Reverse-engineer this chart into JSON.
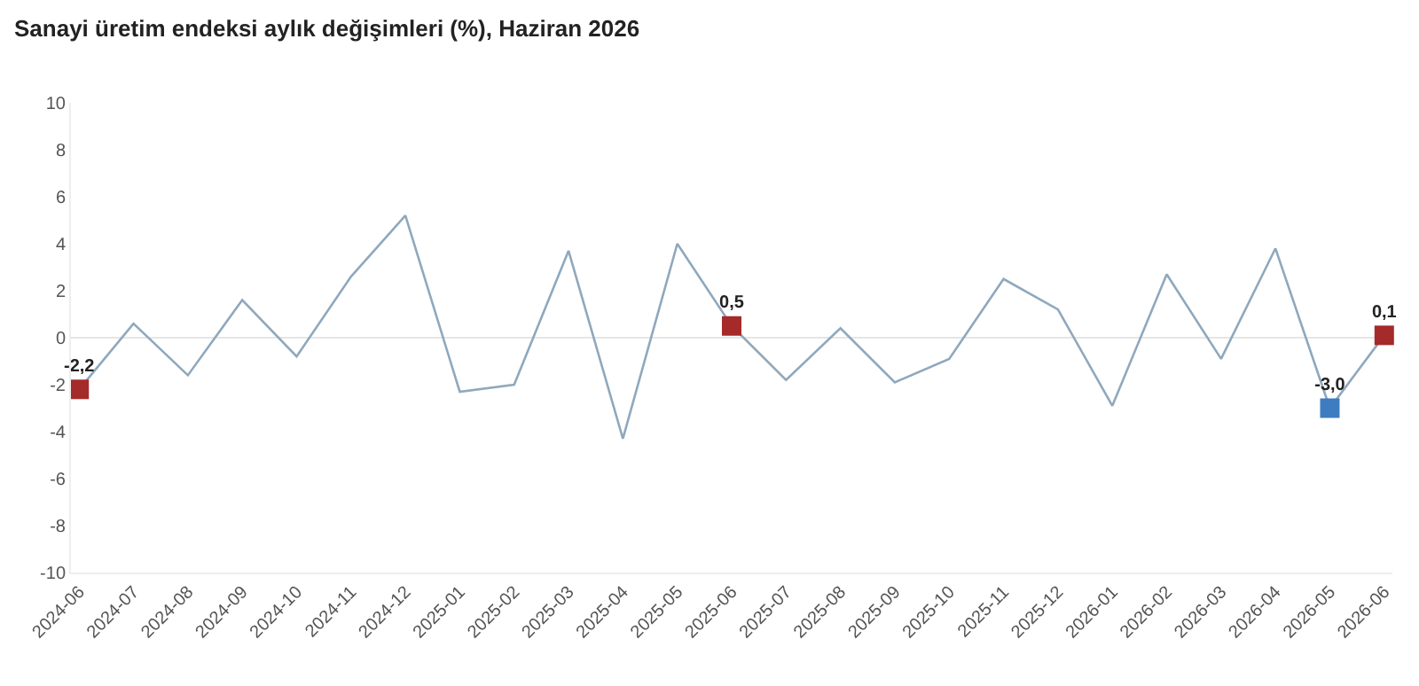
{
  "chart_data": {
    "type": "line",
    "title": "Sanayi üretim endeksi aylık değişimleri (%), Haziran 2026",
    "categories": [
      "2024-06",
      "2024-07",
      "2024-08",
      "2024-09",
      "2024-10",
      "2024-11",
      "2024-12",
      "2025-01",
      "2025-02",
      "2025-03",
      "2025-04",
      "2025-05",
      "2025-06",
      "2025-07",
      "2025-08",
      "2025-09",
      "2025-10",
      "2025-11",
      "2025-12",
      "2026-01",
      "2026-02",
      "2026-03",
      "2026-04",
      "2026-05",
      "2026-06"
    ],
    "series": [
      {
        "color": "#8fa8bd",
        "values": [
          -2.2,
          0.6,
          -1.6,
          1.6,
          -0.8,
          2.6,
          5.2,
          -2.3,
          -2.0,
          3.7,
          -4.3,
          4.0,
          0.5,
          -1.8,
          0.4,
          -1.9,
          -0.9,
          2.5,
          1.2,
          -2.9,
          2.7,
          -0.9,
          3.8,
          -3.0,
          0.1
        ],
        "colors": [
          "#a52a2a",
          null,
          null,
          null,
          null,
          null,
          null,
          null,
          null,
          null,
          null,
          null,
          "#a52a2a",
          null,
          null,
          null,
          null,
          null,
          null,
          null,
          null,
          null,
          null,
          "#3d7cc0",
          "#a52a2a"
        ],
        "value_labels": [
          "-2,2",
          null,
          null,
          null,
          null,
          null,
          null,
          null,
          null,
          null,
          null,
          null,
          "0,5",
          null,
          null,
          null,
          null,
          null,
          null,
          null,
          null,
          null,
          null,
          "-3,0",
          "0,1"
        ]
      }
    ],
    "ylim": [
      -10,
      10
    ],
    "yticks": [
      -10,
      -8,
      -6,
      -4,
      -2,
      0,
      2,
      4,
      6,
      8,
      10
    ],
    "ref_lines": [
      {
        "axis": "y",
        "value": 0,
        "color": "#e6e6e6"
      }
    ],
    "grid": false,
    "line_style": "solid"
  }
}
